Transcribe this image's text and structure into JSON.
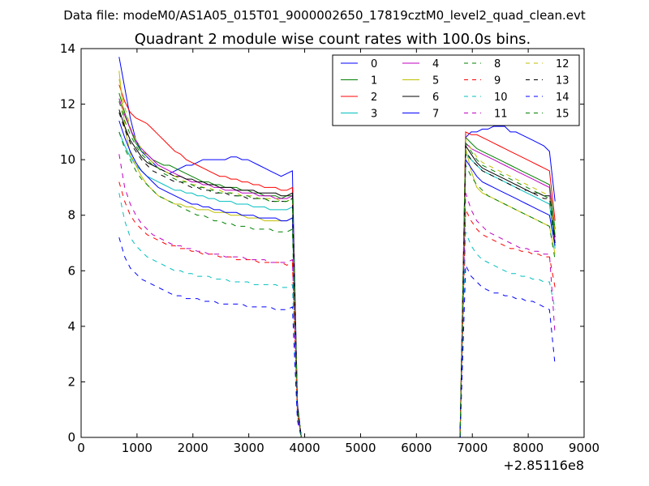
{
  "figure": {
    "suptitle": "Data file: modeM0/AS1A05_015T01_9000002650_17819cztM0_level2_quad_clean.evt"
  },
  "chart_data": {
    "type": "line",
    "title": "Quadrant 2 module wise count rates with 100.0s bins.",
    "xlabel": "",
    "ylabel": "",
    "x_offset_label": "+2.85116e8",
    "xlim": [
      0,
      9000
    ],
    "ylim": [
      0,
      14
    ],
    "xticks": [
      0,
      1000,
      2000,
      3000,
      4000,
      5000,
      6000,
      7000,
      8000,
      9000
    ],
    "yticks": [
      0,
      2,
      4,
      6,
      8,
      10,
      12,
      14
    ],
    "grid": false,
    "legend_placement": "top-right",
    "legend_columns": 4,
    "segments": [
      {
        "start": 680,
        "end": 3780,
        "step": 100
      },
      {
        "start": 6880,
        "end": 8480,
        "step": 100
      }
    ],
    "drop_points": [
      [
        3870,
        1.2
      ],
      [
        3940,
        0
      ]
    ],
    "rise_points": [
      [
        6780,
        0
      ],
      [
        6830,
        5.0
      ]
    ],
    "zero_x": [
      3940,
      6780
    ],
    "series": [
      {
        "name": "0",
        "color": "#0000ff",
        "dash": "solid",
        "seg1": [
          13.7,
          12.6,
          11.5,
          10.7,
          10.3,
          10.1,
          9.9,
          9.7,
          9.6,
          9.5,
          9.6,
          9.7,
          9.8,
          9.8,
          9.9,
          10.0,
          10.0,
          10.0,
          10.0,
          10.0,
          10.1,
          10.1,
          10.0,
          10.0,
          9.9,
          9.8,
          9.7,
          9.6,
          9.5,
          9.4,
          9.5,
          9.6
        ],
        "seg2": [
          10.8,
          11.0,
          11.0,
          11.1,
          11.1,
          11.2,
          11.2,
          11.2,
          11.0,
          11.0,
          10.9,
          10.8,
          10.7,
          10.6,
          10.5,
          10.3,
          8.5
        ]
      },
      {
        "name": "1",
        "color": "#008000",
        "dash": "solid",
        "seg1": [
          12.4,
          11.7,
          11.1,
          10.6,
          10.3,
          10.2,
          10.0,
          9.9,
          9.8,
          9.8,
          9.7,
          9.6,
          9.5,
          9.4,
          9.3,
          9.2,
          9.2,
          9.1,
          9.1,
          9.0,
          9.0,
          9.0,
          8.9,
          8.9,
          8.8,
          8.8,
          8.7,
          8.7,
          8.7,
          8.6,
          8.7,
          8.7
        ],
        "seg2": [
          10.8,
          10.6,
          10.4,
          10.3,
          10.2,
          10.1,
          10.0,
          9.9,
          9.8,
          9.7,
          9.6,
          9.5,
          9.4,
          9.3,
          9.2,
          9.1,
          7.5
        ]
      },
      {
        "name": "2",
        "color": "#ff0000",
        "dash": "solid",
        "seg1": [
          12.7,
          12.1,
          11.7,
          11.5,
          11.4,
          11.3,
          11.1,
          10.9,
          10.7,
          10.5,
          10.3,
          10.2,
          10.0,
          9.9,
          9.8,
          9.7,
          9.6,
          9.5,
          9.4,
          9.4,
          9.3,
          9.3,
          9.2,
          9.2,
          9.1,
          9.1,
          9.0,
          9.0,
          9.0,
          8.9,
          8.9,
          9.0
        ],
        "seg2": [
          11.0,
          10.9,
          10.9,
          10.8,
          10.7,
          10.6,
          10.5,
          10.4,
          10.3,
          10.2,
          10.1,
          10.0,
          9.9,
          9.8,
          9.7,
          9.6,
          7.8
        ]
      },
      {
        "name": "3",
        "color": "#00bfbf",
        "dash": "solid",
        "seg1": [
          11.0,
          10.5,
          10.1,
          9.8,
          9.6,
          9.4,
          9.3,
          9.2,
          9.1,
          9.0,
          8.9,
          8.9,
          8.8,
          8.8,
          8.7,
          8.7,
          8.6,
          8.6,
          8.5,
          8.5,
          8.5,
          8.4,
          8.4,
          8.4,
          8.3,
          8.3,
          8.3,
          8.2,
          8.2,
          8.2,
          8.2,
          8.3
        ],
        "seg2": [
          10.2,
          10.0,
          9.8,
          9.6,
          9.5,
          9.4,
          9.3,
          9.2,
          9.1,
          9.0,
          8.9,
          8.8,
          8.7,
          8.6,
          8.5,
          8.4,
          6.8
        ]
      },
      {
        "name": "4",
        "color": "#bf00bf",
        "dash": "solid",
        "seg1": [
          12.2,
          11.6,
          11.1,
          10.7,
          10.4,
          10.2,
          10.0,
          9.8,
          9.7,
          9.6,
          9.5,
          9.4,
          9.3,
          9.2,
          9.2,
          9.1,
          9.1,
          9.0,
          9.0,
          8.9,
          8.9,
          8.9,
          8.8,
          8.8,
          8.8,
          8.7,
          8.7,
          8.7,
          8.6,
          8.6,
          8.6,
          8.7
        ],
        "seg2": [
          10.6,
          10.4,
          10.3,
          10.2,
          10.1,
          10.0,
          9.9,
          9.8,
          9.7,
          9.6,
          9.5,
          9.4,
          9.3,
          9.2,
          9.1,
          9.0,
          7.0
        ]
      },
      {
        "name": "5",
        "color": "#bfbf00",
        "dash": "solid",
        "seg1": [
          13.2,
          11.2,
          10.2,
          9.8,
          9.4,
          9.1,
          8.9,
          8.7,
          8.6,
          8.5,
          8.4,
          8.4,
          8.3,
          8.3,
          8.2,
          8.2,
          8.2,
          8.1,
          8.1,
          8.1,
          8.0,
          8.0,
          8.0,
          7.9,
          7.9,
          7.9,
          7.8,
          7.8,
          7.8,
          7.8,
          7.8,
          7.9
        ],
        "seg2": [
          10.4,
          9.6,
          9.0,
          8.8,
          8.7,
          8.6,
          8.5,
          8.4,
          8.3,
          8.2,
          8.1,
          8.0,
          7.9,
          7.8,
          7.7,
          7.6,
          6.6
        ]
      },
      {
        "name": "6",
        "color": "#000000",
        "dash": "solid",
        "seg1": [
          11.8,
          11.2,
          10.7,
          10.4,
          10.1,
          9.9,
          9.8,
          9.7,
          9.6,
          9.5,
          9.4,
          9.4,
          9.3,
          9.3,
          9.2,
          9.2,
          9.1,
          9.1,
          9.0,
          9.0,
          9.0,
          8.9,
          8.9,
          8.9,
          8.9,
          8.8,
          8.8,
          8.8,
          8.8,
          8.7,
          8.7,
          8.8
        ],
        "seg2": [
          10.5,
          10.2,
          9.9,
          9.7,
          9.6,
          9.5,
          9.4,
          9.3,
          9.2,
          9.1,
          9.0,
          8.9,
          8.8,
          8.8,
          8.7,
          8.7,
          7.2
        ]
      },
      {
        "name": "7",
        "color": "#0000ff",
        "dash": "solid",
        "seg1": [
          11.4,
          10.8,
          10.3,
          9.9,
          9.6,
          9.4,
          9.2,
          9.0,
          8.9,
          8.8,
          8.7,
          8.6,
          8.5,
          8.4,
          8.4,
          8.3,
          8.3,
          8.2,
          8.2,
          8.1,
          8.1,
          8.1,
          8.0,
          8.0,
          8.0,
          7.9,
          7.9,
          7.9,
          7.9,
          7.8,
          7.8,
          7.9
        ],
        "seg2": [
          10.0,
          9.7,
          9.4,
          9.2,
          9.1,
          9.0,
          8.9,
          8.8,
          8.7,
          8.6,
          8.5,
          8.4,
          8.3,
          8.2,
          8.1,
          8.0,
          6.9
        ]
      },
      {
        "name": "8",
        "color": "#008000",
        "dash": "dashed",
        "seg1": [
          11.0,
          10.4,
          10.0,
          9.6,
          9.3,
          9.1,
          8.9,
          8.7,
          8.6,
          8.5,
          8.4,
          8.3,
          8.2,
          8.1,
          8.0,
          8.0,
          7.9,
          7.8,
          7.8,
          7.7,
          7.7,
          7.6,
          7.6,
          7.6,
          7.5,
          7.5,
          7.5,
          7.5,
          7.4,
          7.4,
          7.4,
          7.5
        ],
        "seg2": [
          9.8,
          9.4,
          9.1,
          8.9,
          8.7,
          8.6,
          8.5,
          8.4,
          8.3,
          8.2,
          8.1,
          8.0,
          7.9,
          7.8,
          7.7,
          7.6,
          6.4
        ]
      },
      {
        "name": "9",
        "color": "#ff0000",
        "dash": "dashed",
        "seg1": [
          9.2,
          8.5,
          8.0,
          7.7,
          7.5,
          7.3,
          7.2,
          7.1,
          7.0,
          6.9,
          6.9,
          6.8,
          6.8,
          6.7,
          6.7,
          6.6,
          6.6,
          6.6,
          6.5,
          6.5,
          6.5,
          6.4,
          6.4,
          6.4,
          6.4,
          6.3,
          6.3,
          6.3,
          6.3,
          6.3,
          6.2,
          6.3
        ],
        "seg2": [
          8.2,
          7.8,
          7.5,
          7.3,
          7.2,
          7.1,
          7.0,
          6.9,
          6.8,
          6.8,
          6.7,
          6.7,
          6.6,
          6.6,
          6.5,
          6.5,
          5.4
        ]
      },
      {
        "name": "10",
        "color": "#00bfbf",
        "dash": "dashed",
        "seg1": [
          8.8,
          7.8,
          7.2,
          6.9,
          6.7,
          6.5,
          6.4,
          6.3,
          6.2,
          6.1,
          6.0,
          6.0,
          5.9,
          5.9,
          5.8,
          5.8,
          5.8,
          5.7,
          5.7,
          5.7,
          5.6,
          5.6,
          5.6,
          5.6,
          5.5,
          5.5,
          5.5,
          5.5,
          5.5,
          5.4,
          5.4,
          5.5
        ],
        "seg2": [
          7.4,
          6.9,
          6.6,
          6.4,
          6.3,
          6.2,
          6.1,
          6.0,
          5.9,
          5.9,
          5.8,
          5.8,
          5.7,
          5.7,
          5.6,
          5.6,
          4.6
        ]
      },
      {
        "name": "11",
        "color": "#bf00bf",
        "dash": "dashed",
        "seg1": [
          10.2,
          9.0,
          8.4,
          8.0,
          7.7,
          7.5,
          7.3,
          7.2,
          7.1,
          7.0,
          6.9,
          6.9,
          6.8,
          6.8,
          6.7,
          6.7,
          6.6,
          6.6,
          6.6,
          6.5,
          6.5,
          6.5,
          6.5,
          6.4,
          6.4,
          6.4,
          6.4,
          6.3,
          6.3,
          6.3,
          6.3,
          6.4
        ],
        "seg2": [
          8.8,
          8.2,
          7.8,
          7.6,
          7.4,
          7.3,
          7.2,
          7.1,
          7.0,
          6.9,
          6.8,
          6.8,
          6.7,
          6.7,
          6.6,
          6.6,
          3.7
        ]
      },
      {
        "name": "12",
        "color": "#bfbf00",
        "dash": "dashed",
        "seg1": [
          12.9,
          11.9,
          11.2,
          10.7,
          10.4,
          10.1,
          9.9,
          9.7,
          9.6,
          9.5,
          9.4,
          9.3,
          9.2,
          9.1,
          9.1,
          9.0,
          9.0,
          8.9,
          8.9,
          8.8,
          8.8,
          8.8,
          8.7,
          8.7,
          8.7,
          8.6,
          8.6,
          8.6,
          8.6,
          8.5,
          8.5,
          8.6
        ],
        "seg2": [
          10.7,
          10.4,
          10.1,
          9.9,
          9.8,
          9.7,
          9.6,
          9.5,
          9.4,
          9.3,
          9.2,
          9.1,
          9.0,
          8.9,
          8.8,
          8.7,
          7.4
        ]
      },
      {
        "name": "13",
        "color": "#000000",
        "dash": "dashed",
        "seg1": [
          11.7,
          11.1,
          10.6,
          10.3,
          10.0,
          9.8,
          9.6,
          9.5,
          9.4,
          9.3,
          9.2,
          9.2,
          9.1,
          9.0,
          9.0,
          8.9,
          8.9,
          8.8,
          8.8,
          8.8,
          8.7,
          8.7,
          8.7,
          8.6,
          8.6,
          8.6,
          8.6,
          8.5,
          8.5,
          8.5,
          8.5,
          8.6
        ],
        "seg2": [
          10.3,
          10.0,
          9.8,
          9.6,
          9.5,
          9.4,
          9.3,
          9.2,
          9.1,
          9.0,
          8.9,
          8.9,
          8.8,
          8.7,
          8.6,
          8.6,
          7.0
        ]
      },
      {
        "name": "14",
        "color": "#0000ff",
        "dash": "dashed",
        "seg1": [
          7.2,
          6.5,
          6.1,
          5.9,
          5.7,
          5.6,
          5.5,
          5.4,
          5.3,
          5.2,
          5.1,
          5.1,
          5.0,
          5.0,
          5.0,
          4.9,
          4.9,
          4.9,
          4.8,
          4.8,
          4.8,
          4.8,
          4.8,
          4.7,
          4.7,
          4.7,
          4.7,
          4.7,
          4.6,
          4.6,
          4.6,
          4.7
        ],
        "seg2": [
          6.2,
          5.8,
          5.6,
          5.4,
          5.3,
          5.2,
          5.2,
          5.1,
          5.1,
          5.0,
          5.0,
          4.9,
          4.9,
          4.8,
          4.7,
          4.6,
          2.6
        ]
      },
      {
        "name": "15",
        "color": "#008000",
        "dash": "dashed",
        "seg1": [
          12.1,
          11.4,
          10.9,
          10.5,
          10.2,
          10.0,
          9.8,
          9.7,
          9.5,
          9.4,
          9.3,
          9.2,
          9.2,
          9.1,
          9.0,
          9.0,
          8.9,
          8.9,
          8.8,
          8.8,
          8.8,
          8.7,
          8.7,
          8.7,
          8.6,
          8.6,
          8.6,
          8.5,
          8.5,
          8.5,
          8.5,
          8.6
        ],
        "seg2": [
          10.6,
          10.3,
          10.0,
          9.8,
          9.7,
          9.6,
          9.5,
          9.4,
          9.3,
          9.2,
          9.1,
          9.0,
          8.9,
          8.8,
          8.7,
          8.6,
          7.3
        ]
      }
    ]
  }
}
